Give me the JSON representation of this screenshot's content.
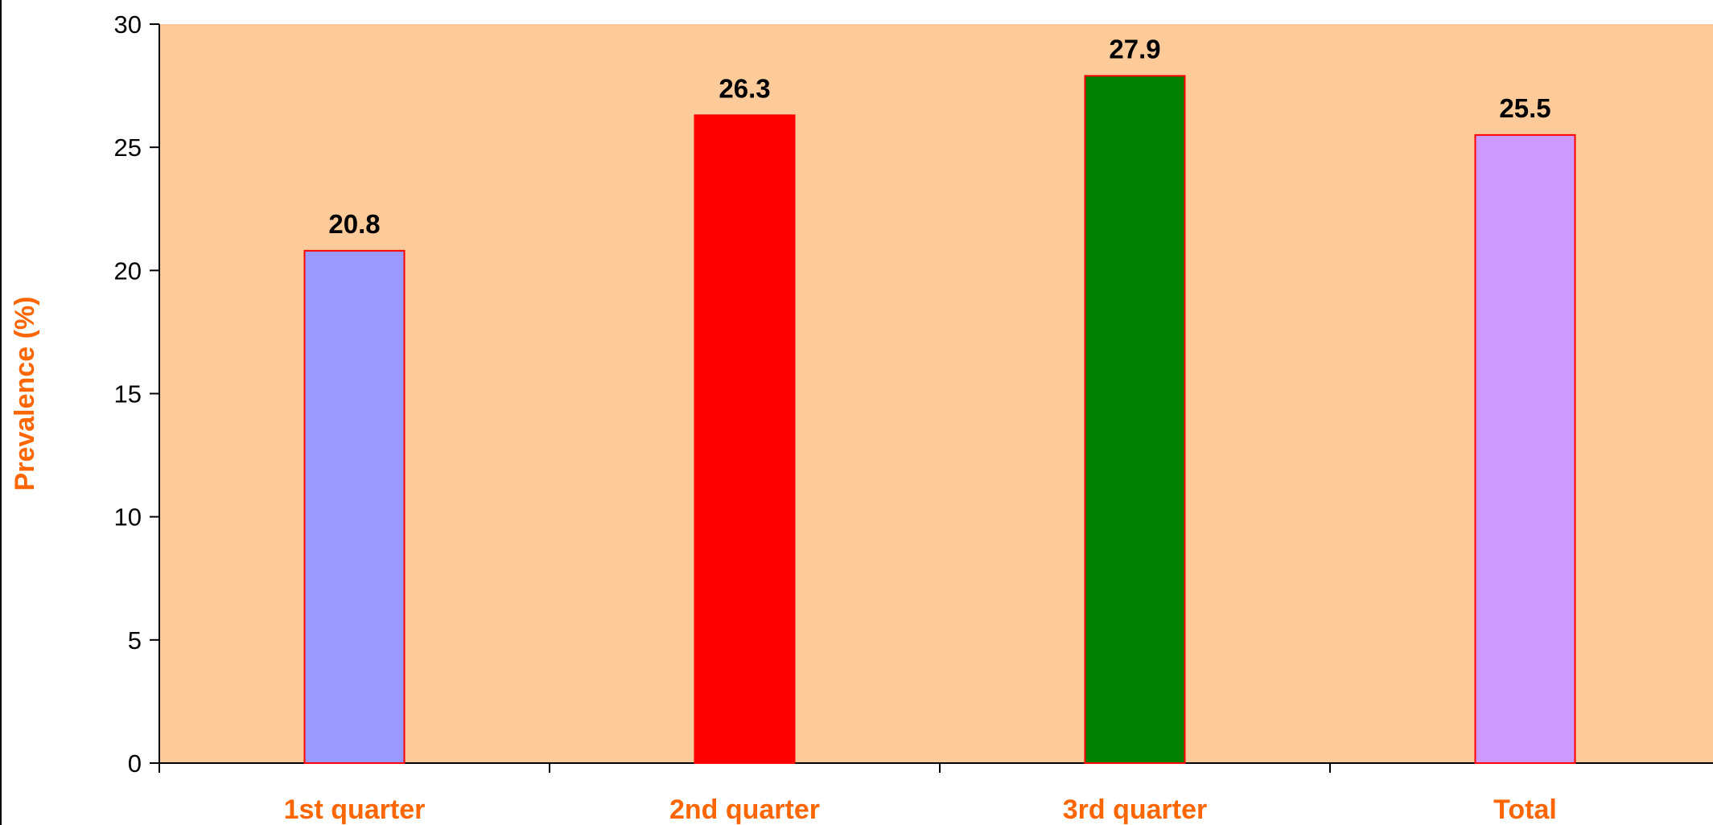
{
  "colors": {
    "plot_background": "#FCCB99",
    "axis": "#000000",
    "bar_border": "#FF0000",
    "category_label": "#FF6600",
    "axis_title": "#FF6600",
    "data_label": "#000000"
  },
  "chart_data": {
    "type": "bar",
    "title": "",
    "xlabel": "",
    "ylabel": "Prevalence (%)",
    "ylim": [
      0,
      30
    ],
    "yticks": [
      0,
      5,
      10,
      15,
      20,
      25,
      30
    ],
    "categories": [
      "1st quarter",
      "2nd quarter",
      "3rd quarter",
      "Total"
    ],
    "values": [
      20.8,
      26.3,
      27.9,
      25.5
    ],
    "data_labels": [
      "20.8",
      "26.3",
      "27.9",
      "25.5"
    ],
    "bar_colors": [
      "#9999FF",
      "#FF0000",
      "#008000",
      "#CC99FF"
    ],
    "grid": false,
    "legend": "none"
  }
}
